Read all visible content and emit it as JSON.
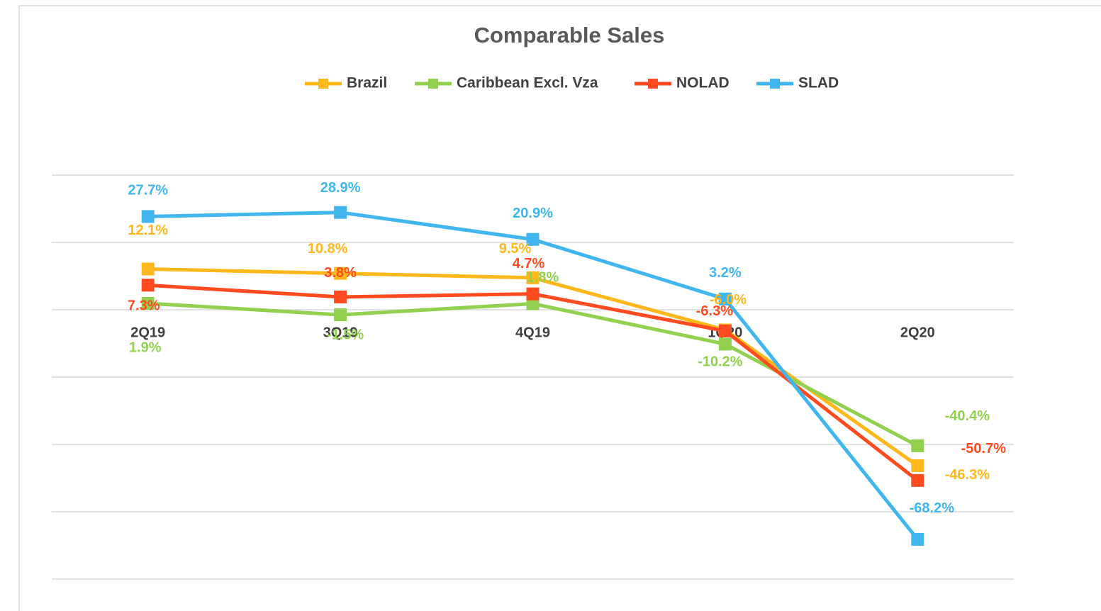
{
  "chart_data": {
    "type": "line",
    "title": "Comparable Sales",
    "categories": [
      "2Q19",
      "3Q19",
      "4Q19",
      "1Q20",
      "2Q20"
    ],
    "series": [
      {
        "name": "Brazil",
        "color": "#FFB81C",
        "values": [
          12.1,
          10.8,
          9.5,
          -6.0,
          -46.3
        ],
        "value_labels": [
          "12.1%",
          "10.8%",
          "9.5%",
          "-6.0%",
          "-46.3%"
        ]
      },
      {
        "name": "Caribbean Excl. Vza",
        "color": "#92D050",
        "values": [
          1.9,
          -1.5,
          1.8,
          -10.2,
          -40.4
        ],
        "value_labels": [
          "1.9%",
          "-1.5%",
          "1.8%",
          "-10.2%",
          "-40.4%"
        ]
      },
      {
        "name": "NOLAD",
        "color": "#FF4B1F",
        "values": [
          7.3,
          3.8,
          4.7,
          -6.3,
          -50.7
        ],
        "value_labels": [
          "7.3%",
          "3.8%",
          "4.7%",
          "-6.3%",
          "-50.7%"
        ]
      },
      {
        "name": "SLAD",
        "color": "#41B6EE",
        "values": [
          27.7,
          28.9,
          20.9,
          3.2,
          -68.2
        ],
        "value_labels": [
          "27.7%",
          "28.9%",
          "20.9%",
          "3.2%",
          "-68.2%"
        ]
      }
    ],
    "ylim": [
      -80,
      40
    ],
    "yticks": [
      -80,
      -60,
      -40,
      -20,
      0,
      20,
      40
    ],
    "grid": true,
    "legend": "top"
  }
}
